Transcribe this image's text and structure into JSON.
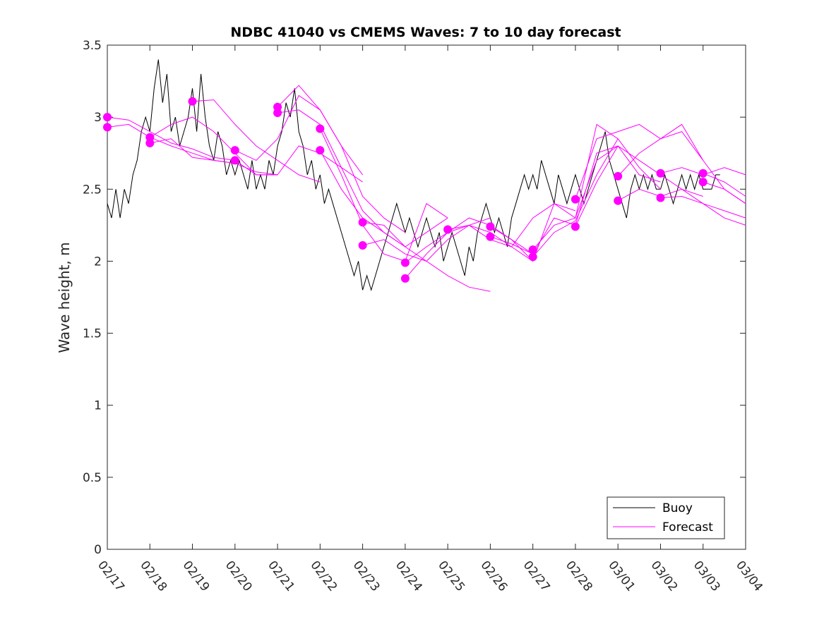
{
  "chart_data": {
    "type": "line",
    "title": "NDBC 41040 vs CMEMS Waves: 7 to 10 day forecast",
    "xlabel": "",
    "ylabel": "Wave height, m",
    "xlim": [
      0,
      15
    ],
    "ylim": [
      0,
      3.5
    ],
    "yticks": [
      0,
      0.5,
      1,
      1.5,
      2,
      2.5,
      3,
      3.5
    ],
    "ytick_labels": [
      "0",
      "0.5",
      "1",
      "1.5",
      "2",
      "2.5",
      "3",
      "3.5"
    ],
    "xticks": [
      0,
      1,
      2,
      3,
      4,
      5,
      6,
      7,
      8,
      9,
      10,
      11,
      12,
      13,
      14,
      15
    ],
    "xtick_labels": [
      "02/17",
      "02/18",
      "02/19",
      "02/20",
      "02/21",
      "02/22",
      "02/23",
      "02/24",
      "02/25",
      "02/26",
      "02/27",
      "02/28",
      "03/01",
      "03/02",
      "03/03",
      "03/04"
    ],
    "legend": {
      "position": "bottom-right",
      "entries": [
        {
          "label": "Buoy",
          "color": "#000000"
        },
        {
          "label": "Forecast",
          "color": "#ff00ff"
        }
      ]
    },
    "series": [
      {
        "name": "Buoy",
        "color": "#000000",
        "x": [
          0,
          0.1,
          0.2,
          0.3,
          0.4,
          0.5,
          0.6,
          0.7,
          0.8,
          0.9,
          1.0,
          1.1,
          1.2,
          1.3,
          1.4,
          1.5,
          1.6,
          1.7,
          1.8,
          1.9,
          2.0,
          2.1,
          2.2,
          2.3,
          2.4,
          2.5,
          2.6,
          2.7,
          2.8,
          2.9,
          3.0,
          3.1,
          3.2,
          3.3,
          3.4,
          3.5,
          3.6,
          3.7,
          3.8,
          3.9,
          4.0,
          4.1,
          4.2,
          4.3,
          4.4,
          4.5,
          4.6,
          4.7,
          4.8,
          4.9,
          5.0,
          5.1,
          5.2,
          5.3,
          5.4,
          5.5,
          5.6,
          5.7,
          5.8,
          5.9,
          6.0,
          6.1,
          6.2,
          6.3,
          6.4,
          6.5,
          6.6,
          6.7,
          6.8,
          6.9,
          7.0,
          7.1,
          7.2,
          7.3,
          7.4,
          7.5,
          7.6,
          7.7,
          7.8,
          7.9,
          8.0,
          8.1,
          8.2,
          8.3,
          8.4,
          8.5,
          8.6,
          8.7,
          8.8,
          8.9,
          9.0,
          9.1,
          9.2,
          9.3,
          9.4,
          9.5,
          9.6,
          9.7,
          9.8,
          9.9,
          10.0,
          10.1,
          10.2,
          10.3,
          10.4,
          10.5,
          10.6,
          10.7,
          10.8,
          10.9,
          11.0,
          11.1,
          11.2,
          11.3,
          11.4,
          11.5,
          11.6,
          11.7,
          11.8,
          11.9,
          12.0,
          12.1,
          12.2,
          12.3,
          12.4,
          12.5,
          12.6,
          12.7,
          12.8,
          12.9,
          13.0,
          13.1,
          13.2,
          13.3,
          13.4,
          13.5,
          13.6,
          13.7,
          13.8,
          13.9,
          14.0,
          14.1,
          14.2,
          14.3,
          14.4
        ],
        "values": [
          2.4,
          2.3,
          2.5,
          2.3,
          2.5,
          2.4,
          2.6,
          2.7,
          2.9,
          3.0,
          2.9,
          3.2,
          3.4,
          3.1,
          3.3,
          2.9,
          3.0,
          2.8,
          2.9,
          3.0,
          3.2,
          2.9,
          3.3,
          3.0,
          2.8,
          2.7,
          2.9,
          2.8,
          2.6,
          2.7,
          2.6,
          2.7,
          2.6,
          2.5,
          2.7,
          2.5,
          2.6,
          2.5,
          2.7,
          2.6,
          2.8,
          2.9,
          3.1,
          3.0,
          3.2,
          2.9,
          2.8,
          2.6,
          2.7,
          2.5,
          2.6,
          2.4,
          2.5,
          2.4,
          2.3,
          2.2,
          2.1,
          2.0,
          1.9,
          2.0,
          1.8,
          1.9,
          1.8,
          1.9,
          2.0,
          2.1,
          2.2,
          2.3,
          2.4,
          2.3,
          2.2,
          2.3,
          2.2,
          2.1,
          2.2,
          2.3,
          2.2,
          2.1,
          2.2,
          2.0,
          2.1,
          2.2,
          2.1,
          2.0,
          1.9,
          2.1,
          2.0,
          2.2,
          2.3,
          2.4,
          2.3,
          2.2,
          2.3,
          2.2,
          2.1,
          2.3,
          2.4,
          2.5,
          2.6,
          2.5,
          2.6,
          2.5,
          2.7,
          2.6,
          2.5,
          2.4,
          2.6,
          2.5,
          2.4,
          2.5,
          2.6,
          2.5,
          2.4,
          2.5,
          2.6,
          2.7,
          2.8,
          2.9,
          2.7,
          2.6,
          2.5,
          2.4,
          2.3,
          2.5,
          2.6,
          2.5,
          2.6,
          2.5,
          2.6,
          2.5,
          2.5,
          2.6,
          2.5,
          2.4,
          2.5,
          2.6,
          2.5,
          2.6,
          2.5,
          2.6,
          2.5,
          2.5,
          2.5,
          2.6,
          2.6
        ]
      },
      {
        "name": "Forecast",
        "color": "#ff00ff",
        "runs": [
          {
            "x": [
              0,
              0.5,
              1.0,
              1.5,
              2.0,
              2.5,
              3.0
            ],
            "values": [
              3.0,
              2.98,
              2.9,
              2.82,
              2.78,
              2.72,
              2.7
            ]
          },
          {
            "x": [
              0,
              0.5,
              1.0,
              1.5,
              2.0,
              2.5,
              3.0
            ],
            "values": [
              2.93,
              2.95,
              2.86,
              2.8,
              2.75,
              2.7,
              2.68
            ]
          },
          {
            "x": [
              1,
              1.5,
              2.0,
              2.5,
              3.0,
              3.5,
              4.0
            ],
            "values": [
              2.86,
              2.95,
              3.0,
              2.9,
              2.75,
              2.6,
              2.6
            ]
          },
          {
            "x": [
              1,
              1.5,
              2.0,
              2.5,
              3.0,
              3.5,
              4.0
            ],
            "values": [
              2.82,
              2.85,
              2.72,
              2.7,
              2.68,
              2.62,
              2.6
            ]
          },
          {
            "x": [
              2,
              2.5,
              3.0,
              3.5,
              4.0,
              4.5,
              5.0
            ],
            "values": [
              3.11,
              3.12,
              2.95,
              2.8,
              2.7,
              2.6,
              2.55
            ]
          },
          {
            "x": [
              3,
              3.5,
              4.0,
              4.5,
              5.0,
              5.5,
              6.0
            ],
            "values": [
              2.77,
              2.7,
              2.85,
              3.15,
              3.05,
              2.8,
              2.6
            ]
          },
          {
            "x": [
              3,
              3.5,
              4.0,
              4.5,
              5.0,
              5.5,
              6.0
            ],
            "values": [
              2.7,
              2.6,
              2.6,
              2.8,
              2.75,
              2.65,
              2.55
            ]
          },
          {
            "x": [
              4,
              4.5,
              5.0,
              5.5,
              6.0,
              6.5,
              7.0
            ],
            "values": [
              3.07,
              3.22,
              3.05,
              2.8,
              2.45,
              2.3,
              2.2
            ]
          },
          {
            "x": [
              4,
              4.5,
              5.0,
              5.5,
              6.0,
              6.5,
              7.0
            ],
            "values": [
              3.03,
              3.05,
              2.95,
              2.65,
              2.35,
              2.2,
              2.1
            ]
          },
          {
            "x": [
              5,
              5.5,
              6.0,
              6.5,
              7.0,
              7.5,
              8.0
            ],
            "values": [
              2.92,
              2.6,
              2.25,
              2.05,
              2.0,
              2.4,
              2.3
            ]
          },
          {
            "x": [
              5,
              5.5,
              6.0,
              6.5,
              7.0,
              7.5,
              8.0
            ],
            "values": [
              2.77,
              2.5,
              2.3,
              2.2,
              2.1,
              2.2,
              2.3
            ]
          },
          {
            "x": [
              6,
              6.5,
              7.0,
              7.5,
              8.0,
              8.5,
              9.0
            ],
            "values": [
              2.27,
              2.25,
              2.1,
              2.0,
              1.9,
              1.82,
              1.79
            ]
          },
          {
            "x": [
              6,
              6.5,
              7.0,
              7.5,
              8.0,
              8.5,
              9.0
            ],
            "values": [
              2.11,
              2.15,
              2.05,
              2.0,
              2.15,
              2.25,
              2.3
            ]
          },
          {
            "x": [
              7,
              7.5,
              8.0,
              8.5,
              9.0,
              9.5,
              10.0
            ],
            "values": [
              1.99,
              2.1,
              2.2,
              2.3,
              2.25,
              2.15,
              2.05
            ]
          },
          {
            "x": [
              7,
              7.5,
              8.0,
              8.5,
              9.0,
              9.5,
              10.0
            ],
            "values": [
              1.88,
              2.05,
              2.2,
              2.25,
              2.2,
              2.1,
              2.0
            ]
          },
          {
            "x": [
              8,
              8.5,
              9.0,
              9.5,
              10.0,
              10.5,
              11.0
            ],
            "values": [
              2.22,
              2.25,
              2.15,
              2.1,
              2.3,
              2.4,
              2.35
            ]
          },
          {
            "x": [
              9,
              9.5,
              10.0,
              10.5,
              11.0,
              11.5,
              12.0
            ],
            "values": [
              2.24,
              2.15,
              2.0,
              2.4,
              2.3,
              2.95,
              2.85
            ]
          },
          {
            "x": [
              9,
              9.5,
              10.0,
              10.5,
              11.0,
              11.5,
              12.0
            ],
            "values": [
              2.17,
              2.12,
              2.05,
              2.3,
              2.25,
              2.75,
              2.8
            ]
          },
          {
            "x": [
              10,
              10.5,
              11.0,
              11.5,
              12.0,
              12.5,
              13.0
            ],
            "values": [
              2.08,
              2.25,
              2.3,
              2.7,
              2.8,
              2.6,
              2.55
            ]
          },
          {
            "x": [
              10,
              10.5,
              11.0,
              11.5,
              12.0,
              12.5,
              13.0
            ],
            "values": [
              2.03,
              2.2,
              2.28,
              2.6,
              2.85,
              2.65,
              2.5
            ]
          },
          {
            "x": [
              11,
              11.5,
              12.0,
              12.5,
              13.0,
              13.5,
              14.0
            ],
            "values": [
              2.43,
              2.85,
              2.9,
              2.95,
              2.85,
              2.9,
              2.7
            ]
          },
          {
            "x": [
              11,
              11.5,
              12.0,
              12.5,
              13.0,
              13.5,
              14.0
            ],
            "values": [
              2.24,
              2.55,
              2.8,
              2.7,
              2.6,
              2.5,
              2.45
            ]
          },
          {
            "x": [
              12,
              12.5,
              13.0,
              13.5,
              14.0,
              14.5,
              15.0
            ],
            "values": [
              2.59,
              2.75,
              2.85,
              2.95,
              2.7,
              2.5,
              2.4
            ]
          },
          {
            "x": [
              12,
              12.5,
              13.0,
              13.5,
              14.0,
              14.5,
              15.0
            ],
            "values": [
              2.42,
              2.5,
              2.45,
              2.5,
              2.4,
              2.3,
              2.25
            ]
          },
          {
            "x": [
              13,
              13.5,
              14.0,
              14.5,
              15.0
            ],
            "values": [
              2.61,
              2.65,
              2.6,
              2.65,
              2.6
            ]
          },
          {
            "x": [
              13,
              13.5,
              14.0,
              14.5,
              15.0
            ],
            "values": [
              2.44,
              2.45,
              2.4,
              2.35,
              2.3
            ]
          },
          {
            "x": [
              14,
              14.5,
              15.0
            ],
            "values": [
              2.61,
              2.55,
              2.45
            ]
          },
          {
            "x": [
              14,
              14.5,
              15.0
            ],
            "values": [
              2.55,
              2.5,
              2.4
            ]
          }
        ]
      }
    ]
  }
}
